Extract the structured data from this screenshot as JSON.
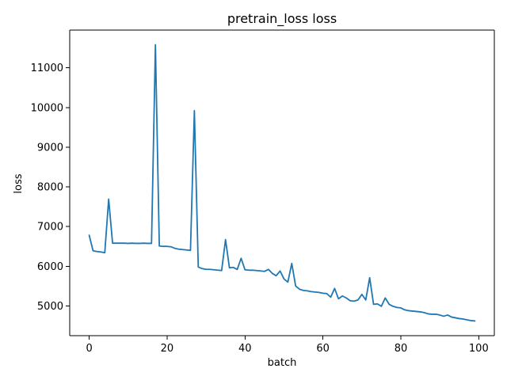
{
  "chart_data": {
    "type": "line",
    "title": "pretrain_loss loss",
    "xlabel": "batch",
    "ylabel": "loss",
    "xlim": [
      -5,
      104
    ],
    "ylim": [
      4250,
      11950
    ],
    "x_ticks": [
      0,
      20,
      40,
      60,
      80,
      100
    ],
    "y_ticks": [
      5000,
      6000,
      7000,
      8000,
      9000,
      10000,
      11000
    ],
    "grid": false,
    "legend": "none",
    "series": [
      {
        "color": "#1f77b4",
        "x": [
          0,
          1,
          2,
          3,
          4,
          5,
          6,
          7,
          8,
          9,
          10,
          11,
          12,
          13,
          14,
          15,
          16,
          17,
          18,
          19,
          20,
          21,
          22,
          23,
          24,
          25,
          26,
          27,
          28,
          29,
          30,
          31,
          32,
          33,
          34,
          35,
          36,
          37,
          38,
          39,
          40,
          41,
          42,
          43,
          44,
          45,
          46,
          47,
          48,
          49,
          50,
          51,
          52,
          53,
          54,
          55,
          56,
          57,
          58,
          59,
          60,
          61,
          62,
          63,
          64,
          65,
          66,
          67,
          68,
          69,
          70,
          71,
          72,
          73,
          74,
          75,
          76,
          77,
          78,
          79,
          80,
          81,
          82,
          83,
          84,
          85,
          86,
          87,
          88,
          89,
          90,
          91,
          92,
          93,
          94,
          95,
          96,
          97,
          98,
          99
        ],
        "y": [
          6780,
          6390,
          6370,
          6360,
          6340,
          7690,
          6580,
          6580,
          6580,
          6580,
          6575,
          6580,
          6575,
          6575,
          6580,
          6575,
          6575,
          11580,
          6510,
          6500,
          6500,
          6490,
          6450,
          6430,
          6420,
          6410,
          6400,
          9920,
          5980,
          5940,
          5920,
          5920,
          5910,
          5900,
          5890,
          6670,
          5960,
          5970,
          5920,
          6200,
          5910,
          5900,
          5900,
          5890,
          5880,
          5870,
          5920,
          5820,
          5760,
          5880,
          5680,
          5600,
          6070,
          5500,
          5420,
          5390,
          5380,
          5360,
          5350,
          5340,
          5320,
          5310,
          5220,
          5440,
          5180,
          5250,
          5200,
          5130,
          5120,
          5150,
          5290,
          5150,
          5710,
          5040,
          5050,
          4990,
          5200,
          5040,
          4990,
          4960,
          4950,
          4900,
          4880,
          4870,
          4860,
          4850,
          4830,
          4800,
          4790,
          4790,
          4770,
          4740,
          4770,
          4720,
          4700,
          4680,
          4670,
          4650,
          4630,
          4620
        ]
      }
    ]
  }
}
